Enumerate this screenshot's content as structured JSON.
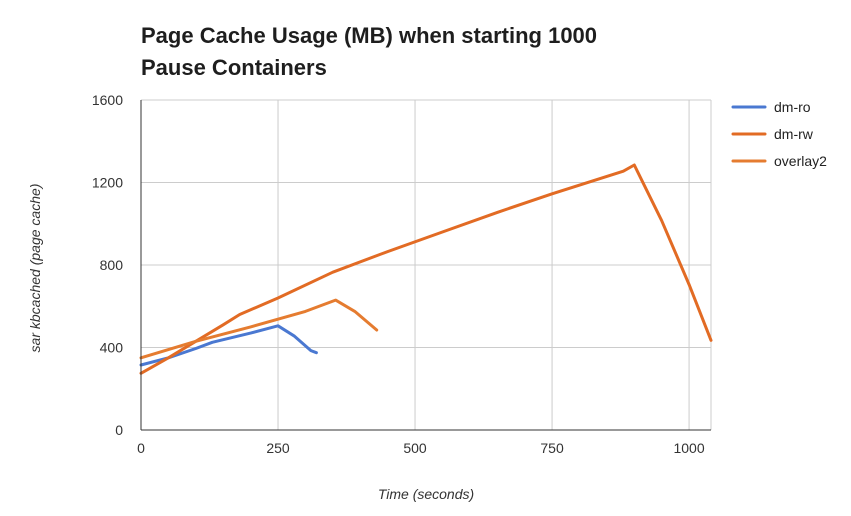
{
  "chart_data": {
    "type": "line",
    "title_lines": [
      "Page Cache Usage (MB) when starting 1000",
      "Pause Containers"
    ],
    "xlabel": "Time (seconds)",
    "ylabel": "sar kbcached (page cache)",
    "xlim": [
      0,
      1040
    ],
    "ylim": [
      0,
      1600
    ],
    "x_ticks": [
      0,
      250,
      500,
      750,
      1000
    ],
    "y_ticks": [
      0,
      400,
      800,
      1200,
      1600
    ],
    "grid": true,
    "legend_position": "right",
    "series": [
      {
        "name": "dm-ro",
        "color": "#4a78d1",
        "points": [
          [
            0,
            315
          ],
          [
            50,
            350
          ],
          [
            100,
            395
          ],
          [
            130,
            425
          ],
          [
            200,
            470
          ],
          [
            250,
            505
          ],
          [
            280,
            455
          ],
          [
            310,
            385
          ],
          [
            320,
            375
          ]
        ]
      },
      {
        "name": "dm-rw",
        "color": "#e26b24",
        "points": [
          [
            0,
            275
          ],
          [
            50,
            350
          ],
          [
            100,
            430
          ],
          [
            150,
            510
          ],
          [
            180,
            560
          ],
          [
            250,
            640
          ],
          [
            350,
            765
          ],
          [
            450,
            865
          ],
          [
            550,
            960
          ],
          [
            650,
            1055
          ],
          [
            750,
            1145
          ],
          [
            880,
            1255
          ],
          [
            900,
            1285
          ],
          [
            950,
            1015
          ],
          [
            1000,
            705
          ],
          [
            1040,
            435
          ]
        ]
      },
      {
        "name": "overlay2",
        "color": "#e57c30",
        "points": [
          [
            0,
            350
          ],
          [
            100,
            430
          ],
          [
            200,
            500
          ],
          [
            300,
            575
          ],
          [
            355,
            630
          ],
          [
            390,
            575
          ],
          [
            430,
            485
          ]
        ]
      }
    ]
  }
}
